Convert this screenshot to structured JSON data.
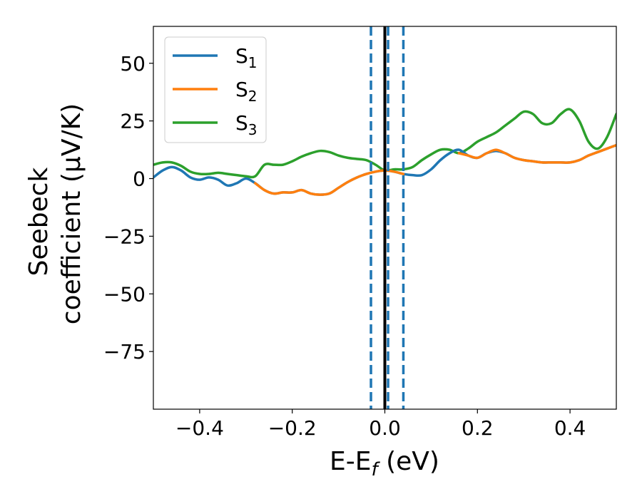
{
  "chart_data": {
    "type": "line",
    "xlabel": "E-E",
    "xlabel_sub": "f",
    "xlabel_unit": " (eV)",
    "ylabel_line1": "Seebeck",
    "ylabel_line2": "coefficient  (μV/K)",
    "xlim": [
      -0.5,
      0.5
    ],
    "ylim": [
      -100,
      66
    ],
    "xticks": [
      -0.4,
      -0.2,
      0.0,
      0.2,
      0.4
    ],
    "xtick_labels": [
      "−0.4",
      "−0.2",
      "0.0",
      "0.2",
      "0.4"
    ],
    "yticks": [
      50,
      25,
      0,
      -25,
      -50,
      -75
    ],
    "ytick_labels": [
      "50",
      "25",
      "0",
      "−25",
      "−50",
      "−75"
    ],
    "legend_position": "top-left",
    "series": [
      {
        "name": "S",
        "subscript": "1",
        "color": "#1f77b4",
        "x": [
          -0.5,
          -0.48,
          -0.46,
          -0.44,
          -0.42,
          -0.4,
          -0.38,
          -0.36,
          -0.34,
          -0.32,
          -0.3,
          -0.28,
          -0.26,
          -0.24,
          -0.22,
          -0.2,
          -0.18,
          -0.16,
          -0.14,
          -0.12,
          -0.1,
          -0.08,
          -0.06,
          -0.04,
          -0.02,
          0.0,
          0.02,
          0.04,
          0.06,
          0.08,
          0.1,
          0.12,
          0.14,
          0.16,
          0.18,
          0.2,
          0.22,
          0.24,
          0.26,
          0.28,
          0.3,
          0.32,
          0.34,
          0.36,
          0.38,
          0.4,
          0.42,
          0.44,
          0.46,
          0.48,
          0.5
        ],
        "y": [
          0.5,
          3.5,
          5,
          3.5,
          0.5,
          -0.5,
          0.5,
          -0.5,
          -3,
          -2,
          0,
          -2,
          -5,
          -6.5,
          -6,
          -6,
          -5,
          -6.5,
          -7,
          -6.5,
          -4,
          -1.5,
          0.5,
          2,
          3,
          3.5,
          3,
          2,
          1.5,
          1.5,
          4,
          8,
          11,
          12.5,
          10,
          9,
          11,
          12,
          11,
          9,
          8,
          7.5,
          7,
          7,
          7,
          7,
          8,
          10,
          11.5,
          13,
          14.5
        ]
      },
      {
        "name": "S",
        "subscript": "2",
        "color": "#ff7f0e",
        "x": [
          -0.28,
          -0.26,
          -0.24,
          -0.22,
          -0.2,
          -0.18,
          -0.16,
          -0.14,
          -0.12,
          -0.1,
          -0.08,
          -0.06,
          -0.04,
          -0.02,
          0.0,
          0.02,
          0.04,
          0.16,
          0.18,
          0.2,
          0.22,
          0.24,
          0.26,
          0.28,
          0.3,
          0.32,
          0.34,
          0.36,
          0.38,
          0.4,
          0.42,
          0.44,
          0.46,
          0.48,
          0.5
        ],
        "y": [
          -2,
          -5,
          -6.5,
          -6,
          -6,
          -5,
          -6.5,
          -7,
          -6.5,
          -4,
          -1.5,
          0.5,
          2,
          3,
          3.5,
          3,
          2,
          11,
          10,
          9,
          11,
          12.5,
          11,
          9,
          8,
          7.5,
          7,
          7,
          7,
          7,
          8,
          10,
          11.5,
          13,
          14.5
        ]
      },
      {
        "name": "S",
        "subscript": "3",
        "color": "#2ca02c",
        "x": [
          -0.5,
          -0.48,
          -0.46,
          -0.44,
          -0.42,
          -0.4,
          -0.38,
          -0.36,
          -0.34,
          -0.32,
          -0.3,
          -0.28,
          -0.26,
          -0.24,
          -0.22,
          -0.2,
          -0.18,
          -0.16,
          -0.14,
          -0.12,
          -0.1,
          -0.08,
          -0.06,
          -0.04,
          -0.02,
          0.0,
          0.02,
          0.04,
          0.06,
          0.08,
          0.1,
          0.12,
          0.14,
          0.16,
          0.18,
          0.2,
          0.22,
          0.24,
          0.26,
          0.28,
          0.3,
          0.32,
          0.34,
          0.36,
          0.38,
          0.4,
          0.42,
          0.44,
          0.46,
          0.48,
          0.5
        ],
        "y": [
          6,
          7,
          7,
          5.5,
          3,
          2,
          2,
          2.5,
          2,
          1.5,
          1,
          1,
          6,
          6,
          6,
          7.5,
          9.5,
          11,
          12,
          11.5,
          10,
          9,
          8.5,
          8,
          6,
          3.5,
          4,
          4,
          5,
          8,
          10.5,
          12.5,
          12.5,
          11,
          13,
          16,
          18,
          20,
          23,
          26,
          29,
          28,
          24,
          24,
          28,
          30,
          25,
          16,
          13,
          18,
          28
        ]
      }
    ],
    "vlines": [
      {
        "x": -0.03,
        "color": "#1f77b4",
        "style": "dashed"
      },
      {
        "x": 0.007,
        "color": "#1f77b4",
        "style": "dashed"
      },
      {
        "x": 0.04,
        "color": "#1f77b4",
        "style": "dashed"
      },
      {
        "x": 0.0,
        "color": "#000000",
        "style": "solid"
      }
    ]
  }
}
